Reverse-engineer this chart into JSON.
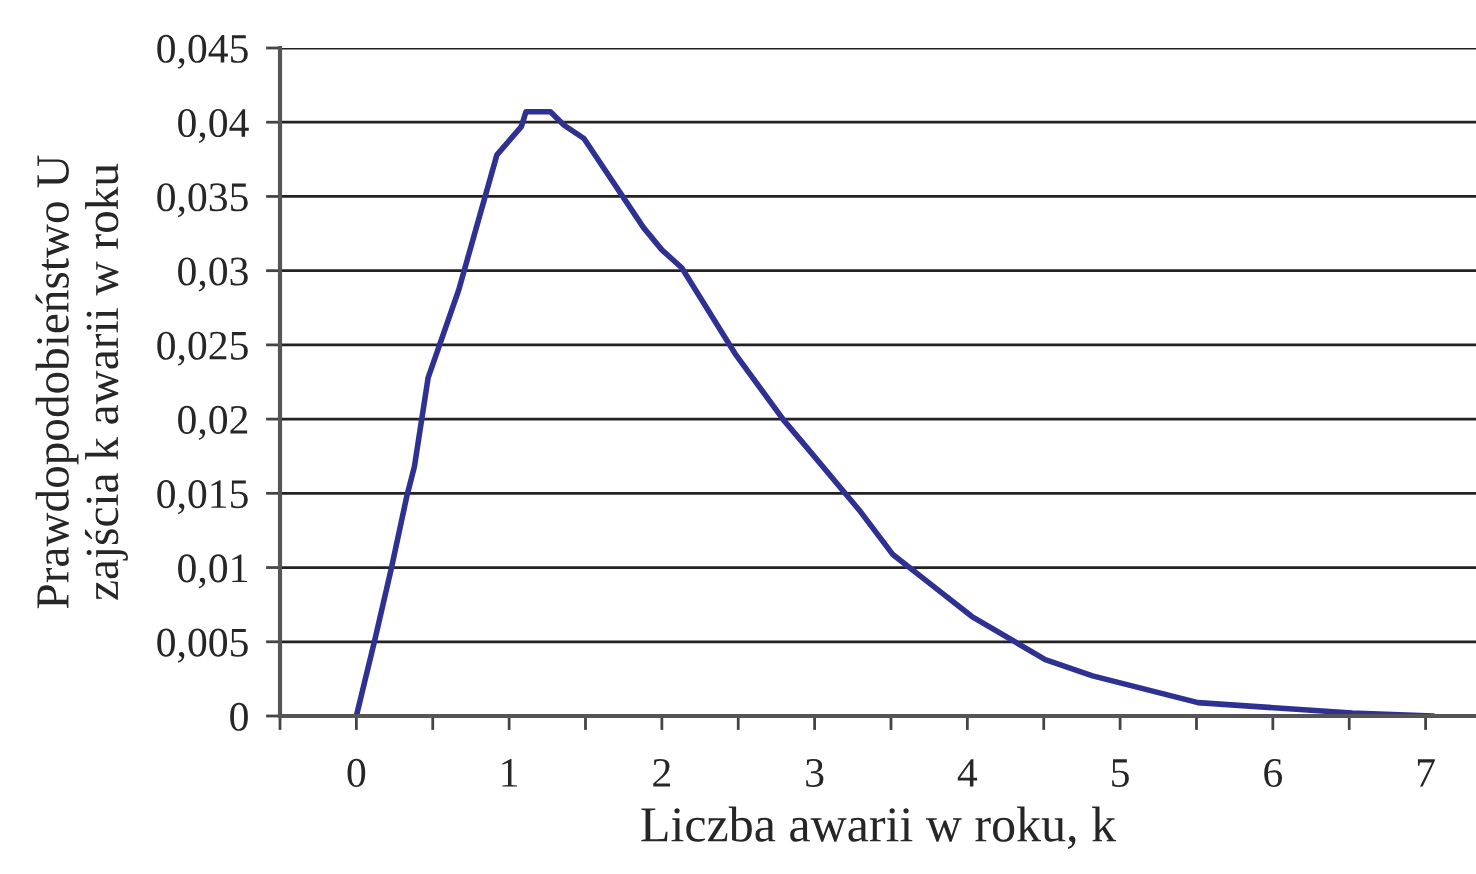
{
  "chart_data": {
    "type": "line",
    "xlabel": "Liczba awarii w roku, k",
    "ylabel": "Prawdopodobieństwo U\nzajścia k awarii w roku",
    "series": [
      {
        "color": "#2e3192",
        "x": [
          0,
          0.12,
          0.23,
          0.33,
          0.38,
          0.47,
          0.67,
          0.92,
          1.08,
          1.11,
          1.27,
          1.36,
          1.49,
          1.88,
          2.0,
          2.13,
          2.48,
          2.8,
          2.94,
          3.29,
          3.51,
          3.77,
          4.03,
          4.51,
          4.82,
          5.51,
          6.52,
          7.05
        ],
        "values": [
          0,
          0.0051,
          0.01,
          0.0148,
          0.0168,
          0.0228,
          0.0287,
          0.0378,
          0.0397,
          0.0407,
          0.0407,
          0.0398,
          0.0389,
          0.0329,
          0.0314,
          0.0302,
          0.0244,
          0.0199,
          0.0182,
          0.0139,
          0.0109,
          0.0088,
          0.0067,
          0.0038,
          0.0027,
          0.0009,
          0.0002,
          0
        ]
      }
    ],
    "xlim": [
      -0.5,
      7.33
    ],
    "xticks": [
      {
        "value": -0.5,
        "label": null
      },
      0,
      {
        "value": 0.5,
        "label": null
      },
      1,
      {
        "value": 1.5,
        "label": null
      },
      2,
      {
        "value": 2.5,
        "label": null
      },
      3,
      {
        "value": 3.5,
        "label": null
      },
      4,
      {
        "value": 4.5,
        "label": null
      },
      5,
      {
        "value": 5.5,
        "label": null
      },
      6,
      {
        "value": 6.5,
        "label": null
      },
      7
    ],
    "ylim": [
      0,
      0.045
    ],
    "yticks": [
      0,
      {
        "value": 0.005,
        "label": "0,005"
      },
      {
        "value": 0.01,
        "label": "0,01"
      },
      {
        "value": 0.015,
        "label": "0,015"
      },
      {
        "value": 0.02,
        "label": "0,02"
      },
      {
        "value": 0.025,
        "label": "0,025"
      },
      {
        "value": 0.03,
        "label": "0,03"
      },
      {
        "value": 0.035,
        "label": "0,035"
      },
      {
        "value": 0.04,
        "label": "0,04"
      },
      {
        "value": 0.045,
        "label": "0,045"
      }
    ],
    "grid": "y",
    "legend": false,
    "marker": "none",
    "line_style": "solid"
  }
}
